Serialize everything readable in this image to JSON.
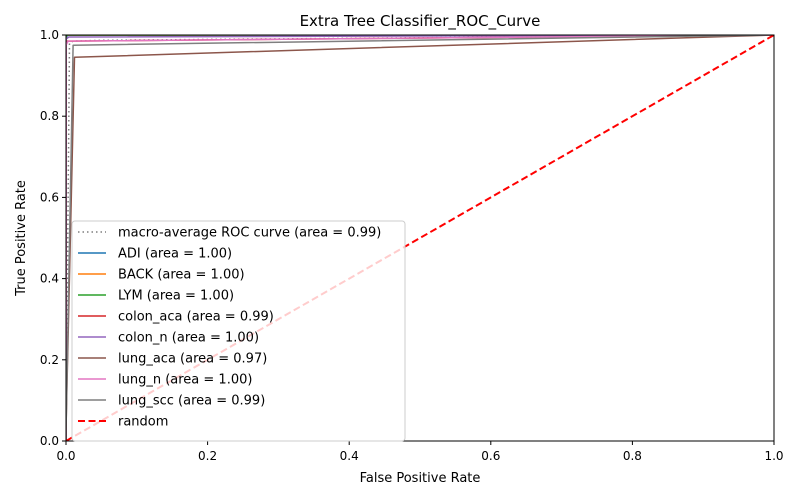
{
  "chart_data": {
    "type": "line",
    "title": "Extra Tree Classifier_ROC_Curve",
    "xlabel": "False Positive Rate",
    "ylabel": "True Positive Rate",
    "xlim": [
      0.0,
      1.0
    ],
    "ylim": [
      0.0,
      1.0
    ],
    "xticks": [
      "0.0",
      "0.2",
      "0.4",
      "0.6",
      "0.8",
      "1.0"
    ],
    "yticks": [
      "0.0",
      "0.2",
      "0.4",
      "0.6",
      "0.8",
      "1.0"
    ],
    "grid": false,
    "legend_position": "lower-left",
    "series": [
      {
        "name": "macro-average ROC curve (area = 0.99)",
        "color": "#7f7f7f",
        "style": "dotted",
        "x": [
          0.0,
          0.005,
          0.01,
          0.05,
          1.0
        ],
        "y": [
          0.0,
          0.98,
          0.985,
          0.987,
          1.0
        ]
      },
      {
        "name": "ADI (area = 1.00)",
        "color": "#1f77b4",
        "style": "solid",
        "x": [
          0.0,
          0.0,
          0.002,
          1.0
        ],
        "y": [
          0.0,
          0.99,
          1.0,
          1.0
        ]
      },
      {
        "name": "BACK (area = 1.00)",
        "color": "#ff7f0e",
        "style": "solid",
        "x": [
          0.0,
          0.0,
          0.001,
          1.0
        ],
        "y": [
          0.0,
          0.995,
          1.0,
          1.0
        ]
      },
      {
        "name": "LYM (area = 1.00)",
        "color": "#2ca02c",
        "style": "solid",
        "x": [
          0.0,
          0.0,
          0.001,
          1.0
        ],
        "y": [
          0.0,
          0.995,
          1.0,
          1.0
        ]
      },
      {
        "name": "colon_aca (area = 0.99)",
        "color": "#d62728",
        "style": "solid",
        "x": [
          0.0,
          0.0,
          0.008,
          1.0
        ],
        "y": [
          0.0,
          0.985,
          0.985,
          1.0
        ]
      },
      {
        "name": "colon_n (area = 1.00)",
        "color": "#9467bd",
        "style": "solid",
        "x": [
          0.0,
          0.0,
          0.004,
          1.0
        ],
        "y": [
          0.0,
          0.99,
          0.995,
          1.0
        ]
      },
      {
        "name": "lung_aca (area = 0.97)",
        "color": "#8c564b",
        "style": "solid",
        "x": [
          0.0,
          0.0,
          0.012,
          1.0
        ],
        "y": [
          0.0,
          0.03,
          0.945,
          1.0
        ]
      },
      {
        "name": "lung_n (area = 1.00)",
        "color": "#e377c2",
        "style": "solid",
        "x": [
          0.0,
          0.0,
          0.003,
          1.0
        ],
        "y": [
          0.0,
          0.975,
          0.985,
          1.0
        ]
      },
      {
        "name": "lung_scc (area = 0.99)",
        "color": "#7f7f7f",
        "style": "solid",
        "x": [
          0.0,
          0.0,
          0.01,
          1.0
        ],
        "y": [
          0.0,
          0.02,
          0.975,
          1.0
        ]
      },
      {
        "name": "random",
        "color": "#ff0000",
        "style": "dashed",
        "x": [
          0.0,
          1.0
        ],
        "y": [
          0.0,
          1.0
        ]
      }
    ]
  }
}
